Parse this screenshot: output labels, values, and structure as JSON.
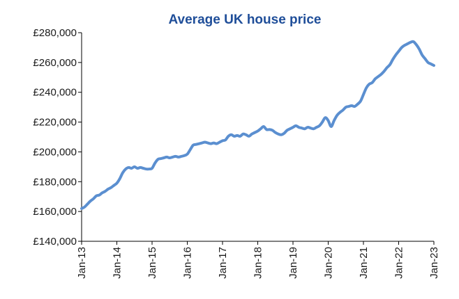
{
  "chart_data": {
    "type": "line",
    "title": "Average UK house price",
    "xlabel": "",
    "ylabel": "",
    "ylim": [
      140000,
      280000
    ],
    "yticks": [
      140000,
      160000,
      180000,
      200000,
      220000,
      240000,
      260000,
      280000
    ],
    "ytick_labels": [
      "£140,000",
      "£160,000",
      "£180,000",
      "£200,000",
      "£220,000",
      "£240,000",
      "£260,000",
      "£280,000"
    ],
    "xticks": [
      "2013-01",
      "2014-01",
      "2015-01",
      "2016-01",
      "2017-01",
      "2018-01",
      "2019-01",
      "2020-01",
      "2021-01",
      "2022-01",
      "2023-01"
    ],
    "xtick_labels": [
      "Jan-13",
      "Jan-14",
      "Jan-15",
      "Jan-16",
      "Jan-17",
      "Jan-18",
      "Jan-19",
      "Jan-20",
      "Jan-21",
      "Jan-22",
      "Jan-23"
    ],
    "grid": false,
    "legend": "none",
    "colors": {
      "line": "#5b8fd0",
      "title": "#1f4e99"
    },
    "series": [
      {
        "x": [
          "2013-01",
          "2013-02",
          "2013-03",
          "2013-04",
          "2013-05",
          "2013-06",
          "2013-07",
          "2013-08",
          "2013-09",
          "2013-10",
          "2013-11",
          "2013-12",
          "2014-01",
          "2014-02",
          "2014-03",
          "2014-04",
          "2014-05",
          "2014-06",
          "2014-07",
          "2014-08",
          "2014-09",
          "2014-10",
          "2014-11",
          "2014-12",
          "2015-01",
          "2015-02",
          "2015-03",
          "2015-04",
          "2015-05",
          "2015-06",
          "2015-07",
          "2015-08",
          "2015-09",
          "2015-10",
          "2015-11",
          "2015-12",
          "2016-01",
          "2016-02",
          "2016-03",
          "2016-04",
          "2016-05",
          "2016-06",
          "2016-07",
          "2016-08",
          "2016-09",
          "2016-10",
          "2016-11",
          "2016-12",
          "2017-01",
          "2017-02",
          "2017-03",
          "2017-04",
          "2017-05",
          "2017-06",
          "2017-07",
          "2017-08",
          "2017-09",
          "2017-10",
          "2017-11",
          "2017-12",
          "2018-01",
          "2018-02",
          "2018-03",
          "2018-04",
          "2018-05",
          "2018-06",
          "2018-07",
          "2018-08",
          "2018-09",
          "2018-10",
          "2018-11",
          "2018-12",
          "2019-01",
          "2019-02",
          "2019-03",
          "2019-04",
          "2019-05",
          "2019-06",
          "2019-07",
          "2019-08",
          "2019-09",
          "2019-10",
          "2019-11",
          "2019-12",
          "2020-01",
          "2020-02",
          "2020-03",
          "2020-04",
          "2020-05",
          "2020-06",
          "2020-07",
          "2020-08",
          "2020-09",
          "2020-10",
          "2020-11",
          "2020-12",
          "2021-01",
          "2021-02",
          "2021-03",
          "2021-04",
          "2021-05",
          "2021-06",
          "2021-07",
          "2021-08",
          "2021-09",
          "2021-10",
          "2021-11",
          "2021-12",
          "2022-01",
          "2022-02",
          "2022-03",
          "2022-04",
          "2022-05",
          "2022-06",
          "2022-07",
          "2022-08",
          "2022-09",
          "2022-10",
          "2022-11",
          "2022-12",
          "2023-01"
        ],
        "values": [
          162000,
          163000,
          165000,
          167000,
          168500,
          170500,
          171000,
          172500,
          173500,
          175000,
          176000,
          177500,
          179000,
          182000,
          186000,
          188500,
          189500,
          189000,
          190000,
          189000,
          189500,
          189000,
          188500,
          188500,
          189000,
          192500,
          195000,
          195500,
          196000,
          196500,
          196000,
          196500,
          197000,
          196500,
          197000,
          197500,
          198500,
          201500,
          204500,
          205000,
          205500,
          206000,
          206500,
          206000,
          205500,
          206000,
          205500,
          206500,
          207500,
          208000,
          210500,
          211500,
          210500,
          211000,
          210500,
          212000,
          211500,
          210500,
          212000,
          213000,
          214000,
          215500,
          217000,
          215000,
          215000,
          214500,
          213000,
          212000,
          211500,
          212500,
          214500,
          215500,
          216500,
          217500,
          216500,
          216000,
          215500,
          216500,
          216000,
          215500,
          216500,
          217500,
          220000,
          223000,
          221000,
          217000,
          221000,
          224500,
          226500,
          228000,
          230000,
          230500,
          231000,
          230500,
          232000,
          234000,
          238500,
          243000,
          245500,
          246500,
          249000,
          250500,
          252000,
          254000,
          256500,
          258500,
          262000,
          265000,
          267500,
          270000,
          271500,
          272500,
          273500,
          274000,
          272000,
          269000,
          265000,
          262500,
          260000,
          259000,
          258000
        ]
      }
    ]
  }
}
